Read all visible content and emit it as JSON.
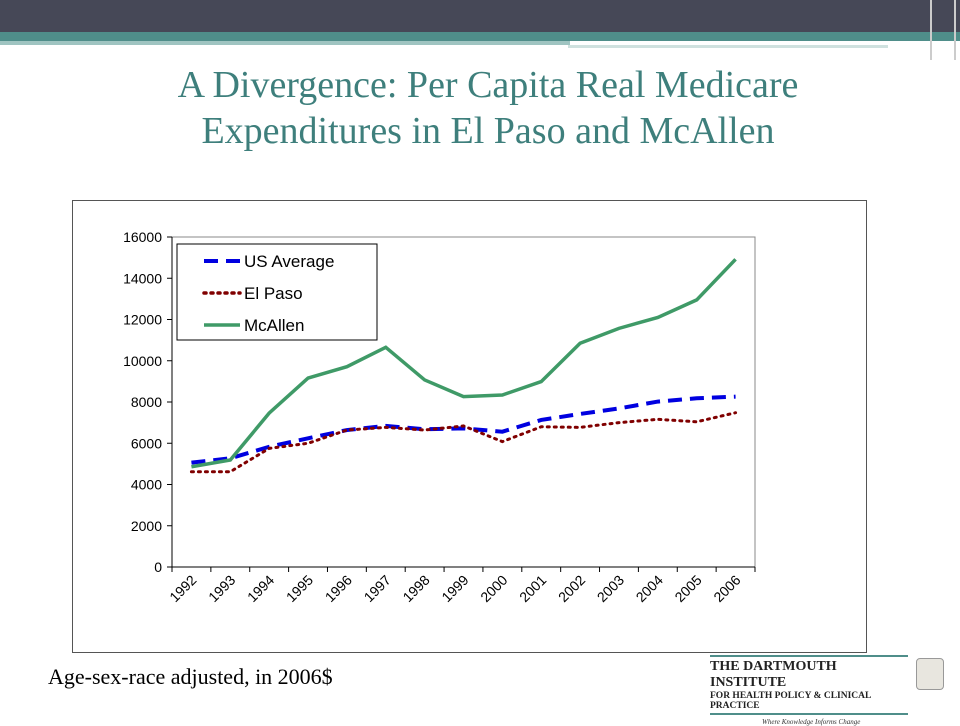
{
  "title_line1": "A Divergence: Per Capita Real Medicare",
  "title_line2": "Expenditures in El Paso and McAllen",
  "footnote": "Age-sex-race adjusted, in 2006$",
  "logo": {
    "line1": "THE DARTMOUTH INSTITUTE",
    "line2": "FOR HEALTH POLICY & CLINICAL PRACTICE",
    "tagline": "Where Knowledge Informs Change"
  },
  "chart_data": {
    "type": "line",
    "x": [
      "1992",
      "1993",
      "1994",
      "1995",
      "1996",
      "1997",
      "1998",
      "1999",
      "2000",
      "2001",
      "2002",
      "2003",
      "2004",
      "2005",
      "2006"
    ],
    "ylim": [
      0,
      16000
    ],
    "yticks": [
      0,
      2000,
      4000,
      6000,
      8000,
      10000,
      12000,
      14000,
      16000
    ],
    "grid": false,
    "legend": "top-left",
    "series": [
      {
        "name": "US Average",
        "color": "#0000e0",
        "style": "dashed",
        "values": [
          5060,
          5270,
          5830,
          6240,
          6640,
          6840,
          6680,
          6720,
          6560,
          7130,
          7420,
          7690,
          8020,
          8180,
          8260
        ]
      },
      {
        "name": "El Paso",
        "color": "#800000",
        "style": "dotted",
        "values": [
          4620,
          4620,
          5750,
          6000,
          6640,
          6770,
          6640,
          6840,
          6080,
          6800,
          6770,
          7000,
          7160,
          7040,
          7480
        ]
      },
      {
        "name": "McAllen",
        "color": "#3f9a67",
        "style": "solid",
        "values": [
          4860,
          5190,
          7460,
          9160,
          9710,
          10650,
          9070,
          8260,
          8340,
          8990,
          10850,
          11570,
          12100,
          12950,
          14920
        ]
      }
    ]
  }
}
